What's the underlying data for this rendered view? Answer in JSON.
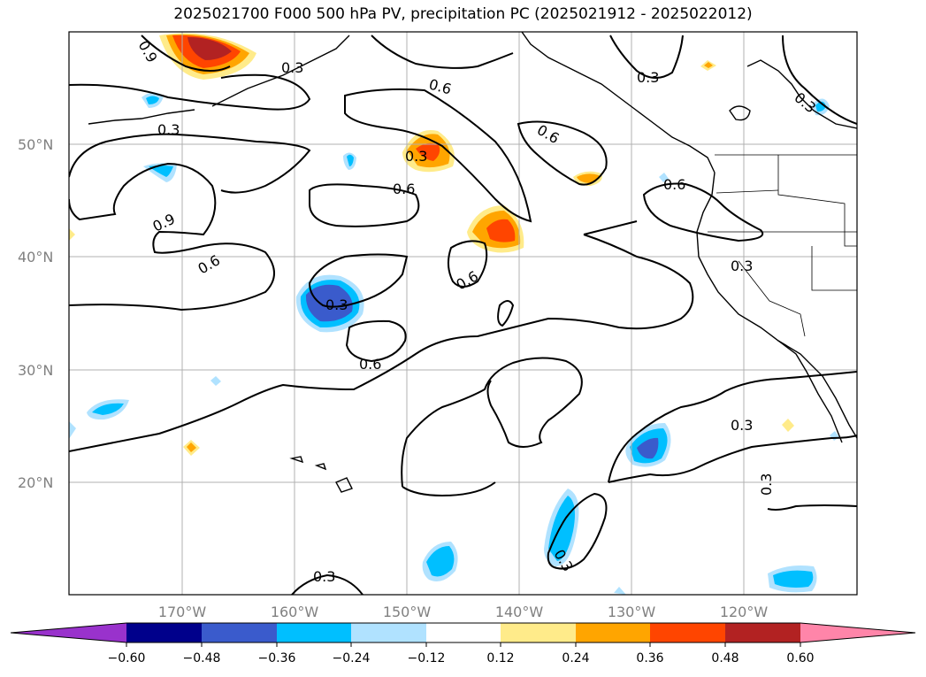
{
  "title": "2025021700 F000 500 hPa PV, precipitation PC (2025021912 - 2025022012)",
  "map": {
    "lon_range": [
      -180,
      -110
    ],
    "lat_range": [
      10,
      60
    ],
    "grid": true,
    "lon_ticks": [
      "170°W",
      "160°W",
      "150°W",
      "140°W",
      "130°W",
      "120°W"
    ],
    "lat_ticks": [
      "50°N",
      "40°N",
      "30°N",
      "20°N"
    ],
    "contour_levels": [
      "0.3",
      "0.6",
      "0.9"
    ]
  },
  "colorbar": {
    "ticks": [
      "−0.60",
      "−0.48",
      "−0.36",
      "−0.24",
      "−0.12",
      "0.12",
      "0.24",
      "0.36",
      "0.48",
      "0.60"
    ],
    "colors": {
      "under": "#9932cc",
      "b1": "#00008b",
      "b2": "#3a5bcc",
      "b3": "#00bfff",
      "b4": "#b0e2ff",
      "b5": "#ffffff",
      "b6": "#ffeb8a",
      "b7": "#ffa500",
      "b8": "#ff4500",
      "b9": "#b22222",
      "over": "#ff85a9"
    }
  }
}
